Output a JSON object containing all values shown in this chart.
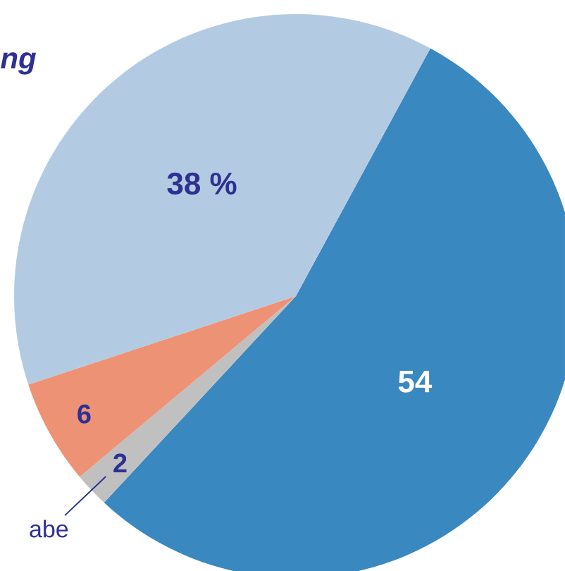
{
  "chart_data": {
    "type": "pie",
    "title": "ng",
    "categories": [
      null,
      "abe",
      null,
      null
    ],
    "values": [
      54,
      2,
      6,
      38
    ],
    "value_labels": [
      "54",
      "2",
      "6",
      "38 %"
    ],
    "colors": [
      "#3a88c0",
      "#c0c0c0",
      "#ee9275",
      "#b3cbe2"
    ]
  }
}
